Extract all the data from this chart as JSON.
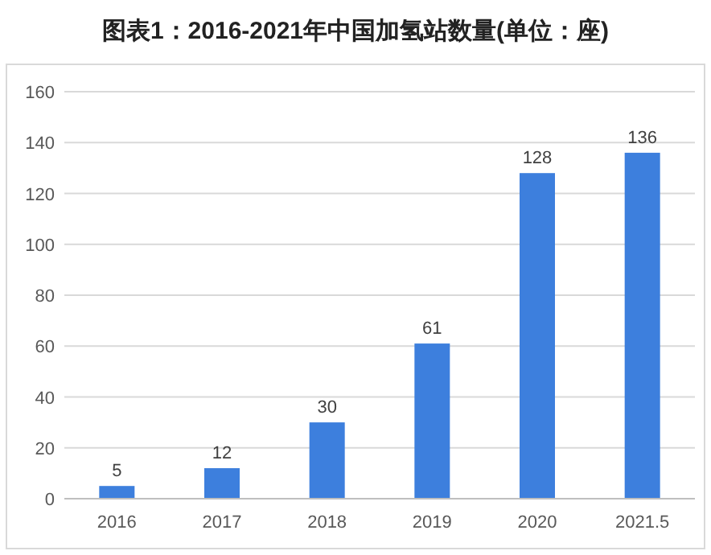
{
  "chart_data": {
    "type": "bar",
    "title": "图表1：2016-2021年中国加氢站数量(单位：座)",
    "categories": [
      "2016",
      "2017",
      "2018",
      "2019",
      "2020",
      "2021.5"
    ],
    "values": [
      5,
      12,
      30,
      61,
      128,
      136
    ],
    "color": "#3d7fdd",
    "ylim": [
      0,
      160
    ],
    "yticks": [
      0,
      20,
      40,
      60,
      80,
      100,
      120,
      140,
      160
    ],
    "grid": "y",
    "data_labels": true
  }
}
